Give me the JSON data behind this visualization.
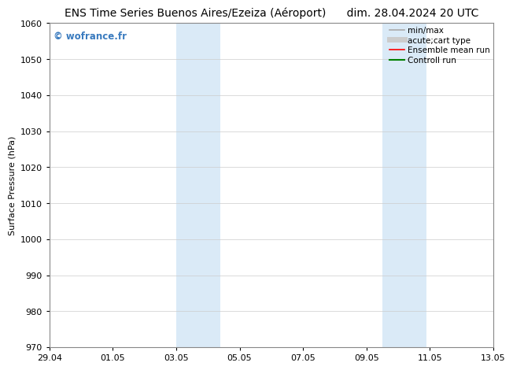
{
  "title": "ENS Time Series Buenos Aires/Ezeiza (Aéroport)",
  "date_label": "dim. 28.04.2024 20 UTC",
  "ylabel": "Surface Pressure (hPa)",
  "ylim": [
    970,
    1060
  ],
  "yticks": [
    970,
    980,
    990,
    1000,
    1010,
    1020,
    1030,
    1040,
    1050,
    1060
  ],
  "xtick_labels": [
    "29.04",
    "01.05",
    "03.05",
    "05.05",
    "07.05",
    "09.05",
    "11.05",
    "13.05"
  ],
  "xtick_positions": [
    0,
    2,
    4,
    6,
    8,
    10,
    12,
    14
  ],
  "xlim": [
    0,
    14
  ],
  "shaded_bands": [
    {
      "x_start": 4.0,
      "x_end": 4.7,
      "x_mid": 4.35
    },
    {
      "x_start": 4.7,
      "x_end": 5.4,
      "x_mid": 5.05
    },
    {
      "x_start": 10.5,
      "x_end": 11.2,
      "x_mid": 10.85
    },
    {
      "x_start": 11.2,
      "x_end": 11.9,
      "x_mid": 11.55
    }
  ],
  "shaded_color": "#daeaf7",
  "watermark_text": "© wofrance.fr",
  "watermark_color": "#3a7bbf",
  "legend_items": [
    {
      "label": "min/max",
      "color": "#aaaaaa",
      "lw": 1.2
    },
    {
      "label": "acute;cart type",
      "color": "#cccccc",
      "lw": 5
    },
    {
      "label": "Ensemble mean run",
      "color": "#ff0000",
      "lw": 1.2
    },
    {
      "label": "Controll run",
      "color": "#008000",
      "lw": 1.5
    }
  ],
  "bg_color": "#ffffff",
  "grid_color": "#cccccc",
  "title_fontsize": 10,
  "axis_fontsize": 8,
  "tick_fontsize": 8,
  "legend_fontsize": 7.5
}
